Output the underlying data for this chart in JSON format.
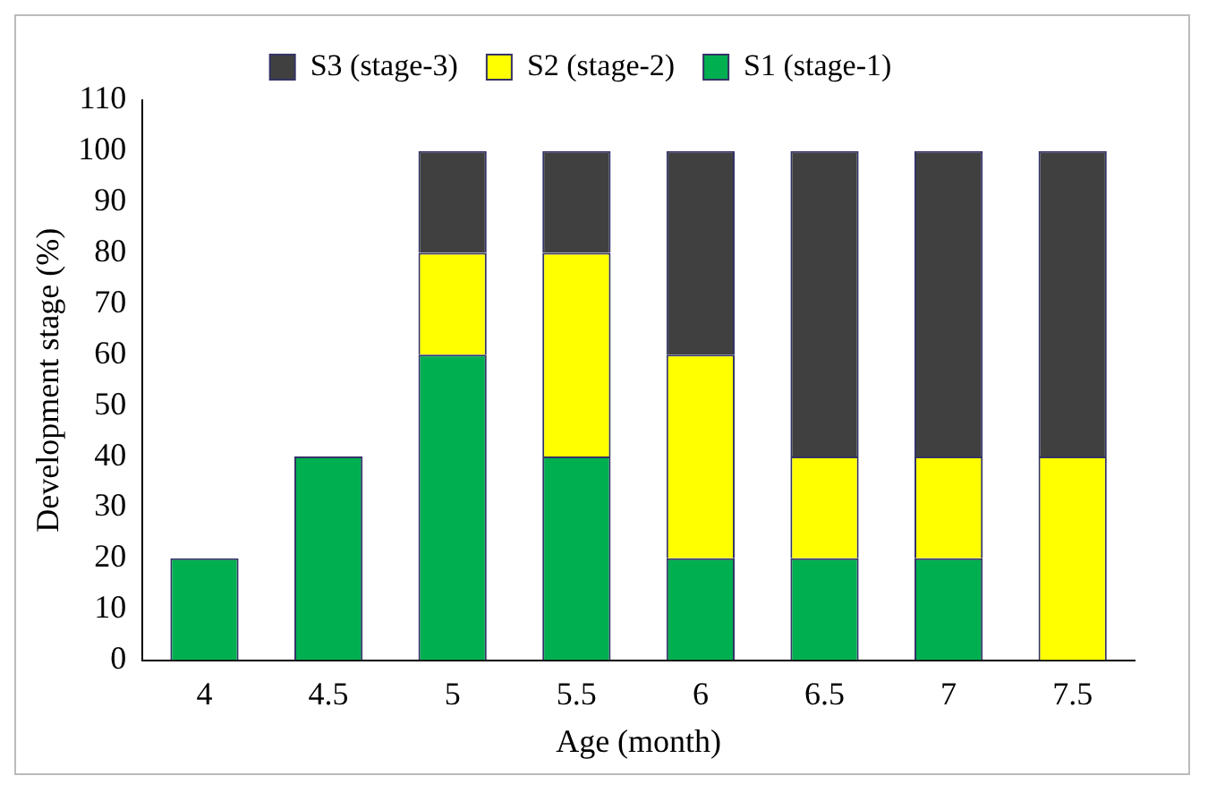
{
  "chart_data": {
    "type": "bar",
    "stacked": true,
    "xlabel": "Age (month)",
    "ylabel": "Development stage (%)",
    "categories": [
      "4",
      "4.5",
      "5",
      "5.5",
      "6",
      "6.5",
      "7",
      "7.5"
    ],
    "series": [
      {
        "name": "S1 (stage-1)",
        "color": "#00b050",
        "values": [
          20,
          40,
          60,
          40,
          20,
          20,
          20,
          0
        ]
      },
      {
        "name": "S2 (stage-2)",
        "color": "#ffff00",
        "values": [
          0,
          0,
          20,
          40,
          40,
          20,
          20,
          40
        ]
      },
      {
        "name": "S3 (stage-3)",
        "color": "#404040",
        "values": [
          0,
          0,
          20,
          20,
          40,
          60,
          60,
          60
        ]
      }
    ],
    "ylim": [
      0,
      110
    ],
    "yticks": [
      0,
      10,
      20,
      30,
      40,
      50,
      60,
      70,
      80,
      90,
      100,
      110
    ],
    "grid": false,
    "legend": "top"
  }
}
